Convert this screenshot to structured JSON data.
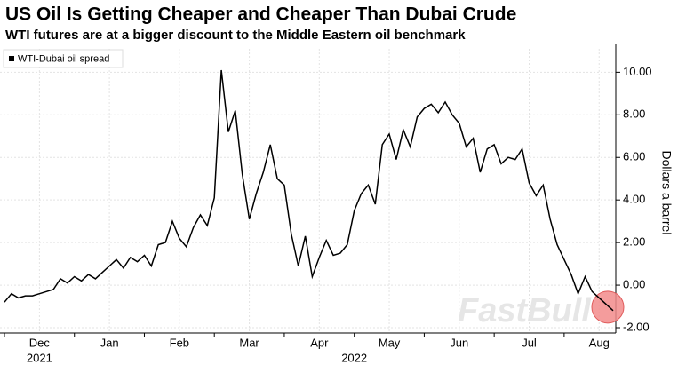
{
  "chart_data": {
    "type": "line",
    "title": "US Oil Is Getting Cheaper and Cheaper Than Dubai Crude",
    "subtitle": "WTI futures are at a bigger discount to the Middle Eastern oil benchmark",
    "y_axis_label": "Dollars a barrel",
    "watermark": "FastBull",
    "categories": [
      null,
      null,
      null,
      null,
      null,
      "Dec",
      null,
      null,
      null,
      null,
      null,
      null,
      null,
      null,
      null,
      "Jan",
      null,
      null,
      null,
      null,
      null,
      null,
      null,
      null,
      null,
      "Feb",
      null,
      null,
      null,
      null,
      null,
      null,
      null,
      null,
      null,
      "Mar",
      null,
      null,
      null,
      null,
      null,
      null,
      null,
      null,
      null,
      "Apr",
      null,
      null,
      null,
      null,
      null,
      null,
      null,
      null,
      null,
      "May",
      null,
      null,
      null,
      null,
      null,
      null,
      null,
      null,
      null,
      "Jun",
      null,
      null,
      null,
      null,
      null,
      null,
      null,
      null,
      null,
      "Jul",
      null,
      null,
      null,
      null,
      null,
      null,
      null,
      null,
      null,
      "Aug",
      null,
      null
    ],
    "x_year_labels": [
      "2021",
      "2022"
    ],
    "series": [
      {
        "name": "WTI-Dubai oil spread",
        "color": "#000000",
        "values": [
          -0.8,
          -0.4,
          -0.6,
          -0.5,
          -0.5,
          -0.4,
          -0.3,
          -0.2,
          0.3,
          0.1,
          0.4,
          0.2,
          0.5,
          0.3,
          0.6,
          0.9,
          1.2,
          0.8,
          1.3,
          1.1,
          1.4,
          0.9,
          1.9,
          2.0,
          3.0,
          2.2,
          1.8,
          2.7,
          3.3,
          2.8,
          4.1,
          10.1,
          7.2,
          8.2,
          5.2,
          3.1,
          4.3,
          5.3,
          6.6,
          5.0,
          4.7,
          2.4,
          0.9,
          2.3,
          0.4,
          1.3,
          2.1,
          1.4,
          1.5,
          1.9,
          3.5,
          4.3,
          4.7,
          3.8,
          6.6,
          7.1,
          5.9,
          7.3,
          6.5,
          7.9,
          8.3,
          8.5,
          8.1,
          8.6,
          8.0,
          7.6,
          6.5,
          6.9,
          5.3,
          6.4,
          6.6,
          5.7,
          6.0,
          5.9,
          6.4,
          4.8,
          4.2,
          4.7,
          3.1,
          1.9,
          1.2,
          0.5,
          -0.4,
          0.4,
          -0.3,
          -0.6,
          -0.9,
          -1.2
        ]
      }
    ],
    "ylim": [
      -2.25,
      11.1
    ],
    "yticks": [
      {
        "value": -2,
        "label": "-2.00"
      },
      {
        "value": 0,
        "label": "0.00"
      },
      {
        "value": 2,
        "label": "2.00"
      },
      {
        "value": 4,
        "label": "4.00"
      },
      {
        "value": 6,
        "label": "6.00"
      },
      {
        "value": 8,
        "label": "8.00"
      },
      {
        "value": 10,
        "label": "10.00"
      }
    ],
    "y_axis_side": "right",
    "grid": true,
    "legend": "top-left",
    "highlight_last_point": true
  }
}
